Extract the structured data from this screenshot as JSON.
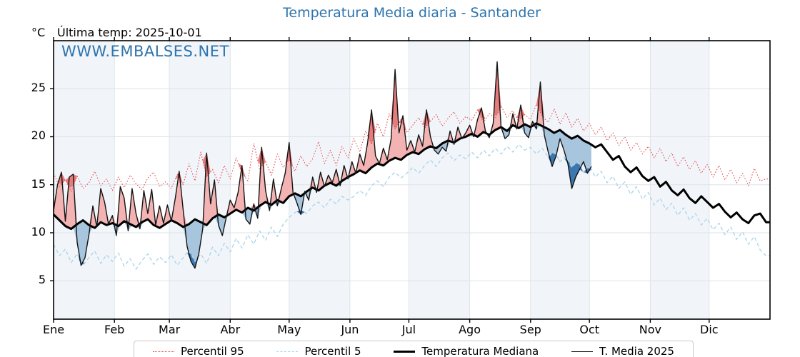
{
  "header": {
    "title": "Temperatura Media diaria - Santander",
    "unit_label": "°C",
    "last_temp_label": "Última temp: 2025-10-01",
    "watermark": "WWW.EMBALSES.NET"
  },
  "chart_data": {
    "type": "line",
    "title": "Temperatura Media diaria - Santander",
    "xlabel": "",
    "ylabel": "°C",
    "ylim": [
      1,
      30
    ],
    "yticks": [
      5,
      10,
      15,
      20,
      25
    ],
    "days_total": 365,
    "months": [
      "Ene",
      "Feb",
      "Mar",
      "Abr",
      "May",
      "Jun",
      "Jul",
      "Ago",
      "Sep",
      "Oct",
      "Nov",
      "Dic"
    ],
    "month_starts": [
      0,
      31,
      59,
      90,
      120,
      151,
      181,
      212,
      243,
      273,
      304,
      334
    ],
    "grid": true,
    "legend_position": "bottom",
    "band_alternate_start_month": "Ene",
    "colors": {
      "band": "#f1f5fa",
      "grid": "#dde3e8",
      "spine": "#000000",
      "title": "#2e74ad",
      "watermark": "#2e74ad"
    },
    "fills": {
      "above_median": "#f3b3b3",
      "above_p95": "#e57c7c",
      "below_median": "#a8c5de",
      "below_p5": "#3d77af"
    },
    "series": [
      {
        "name": "Percentil 95",
        "key": "p95",
        "style": "dotted",
        "color": "#e34c4c",
        "width": 1.1,
        "step": 3,
        "extend": true,
        "values": [
          16.2,
          14.8,
          15.5,
          14.3,
          15.9,
          14.6,
          15.2,
          16.4,
          14.9,
          15.6,
          14.4,
          15.8,
          14.7,
          16.0,
          15.1,
          14.5,
          15.7,
          16.3,
          14.8,
          15.3,
          14.6,
          16.1,
          15.0,
          17.2,
          15.4,
          18.4,
          15.8,
          16.6,
          15.2,
          17.0,
          15.6,
          17.8,
          16.2,
          15.4,
          19.3,
          16.6,
          17.4,
          16.0,
          18.2,
          16.8,
          17.6,
          16.4,
          18.0,
          16.9,
          17.7,
          19.5,
          17.2,
          18.6,
          17.0,
          19.0,
          17.8,
          19.8,
          18.4,
          20.6,
          19.2,
          21.4,
          20.0,
          22.4,
          20.8,
          21.8,
          20.4,
          21.2,
          22.0,
          20.9,
          21.6,
          22.3,
          21.1,
          21.9,
          22.6,
          21.4,
          22.1,
          21.7,
          22.8,
          21.5,
          22.4,
          21.9,
          23.2,
          22.0,
          22.7,
          21.6,
          22.3,
          21.8,
          23.4,
          22.1,
          21.5,
          22.9,
          21.3,
          22.5,
          21.0,
          21.9,
          20.6,
          21.4,
          20.2,
          21.0,
          19.6,
          20.4,
          19.1,
          20.0,
          18.6,
          19.4,
          18.2,
          19.0,
          17.8,
          18.8,
          17.4,
          18.3,
          16.9,
          17.9,
          16.6,
          17.5,
          16.2,
          17.1,
          15.8,
          17.0,
          15.5,
          16.6,
          15.2,
          16.2,
          14.9,
          16.7,
          15.4,
          15.6
        ]
      },
      {
        "name": "Percentil 5",
        "key": "p5",
        "style": "dashed",
        "color": "#aad4e8",
        "width": 1.3,
        "step": 3,
        "extend": true,
        "values": [
          8.8,
          7.6,
          8.3,
          6.9,
          7.8,
          6.6,
          7.4,
          8.1,
          6.8,
          7.7,
          7.0,
          7.9,
          6.5,
          7.3,
          6.2,
          7.1,
          7.8,
          6.7,
          7.5,
          6.9,
          7.7,
          6.6,
          7.4,
          8.2,
          7.0,
          7.8,
          6.8,
          8.5,
          7.6,
          8.9,
          8.0,
          9.4,
          8.4,
          9.8,
          8.8,
          10.2,
          9.2,
          10.6,
          9.6,
          10.9,
          11.6,
          12.1,
          12.4,
          12.0,
          12.8,
          13.2,
          12.6,
          13.5,
          13.0,
          13.8,
          13.4,
          13.8,
          14.4,
          13.9,
          14.9,
          15.4,
          14.8,
          15.8,
          16.3,
          15.7,
          16.2,
          16.8,
          16.2,
          17.0,
          17.6,
          16.9,
          17.8,
          18.3,
          17.5,
          18.1,
          17.7,
          18.4,
          17.8,
          18.6,
          18.0,
          18.8,
          18.2,
          19.0,
          18.4,
          19.2,
          18.6,
          18.9,
          18.2,
          18.8,
          17.9,
          18.5,
          17.4,
          18.0,
          16.8,
          17.5,
          16.3,
          17.0,
          15.8,
          16.4,
          15.2,
          15.9,
          14.6,
          15.3,
          14.0,
          14.8,
          13.5,
          14.2,
          12.9,
          13.6,
          12.4,
          13.1,
          11.8,
          12.6,
          11.3,
          12.0,
          10.8,
          11.5,
          10.3,
          11.0,
          9.8,
          10.6,
          9.3,
          10.1,
          8.8,
          9.6,
          8.2,
          7.6
        ]
      },
      {
        "name": "Temperatura Mediana",
        "key": "mediana",
        "style": "solid-thick",
        "color": "#000000",
        "width": 3,
        "step": 3,
        "extend": true,
        "values": [
          11.9,
          11.3,
          10.7,
          10.4,
          10.9,
          11.3,
          10.8,
          10.5,
          11.1,
          10.8,
          11.0,
          10.7,
          11.2,
          10.9,
          10.6,
          11.1,
          11.4,
          10.8,
          10.5,
          10.9,
          11.3,
          11.0,
          10.6,
          10.9,
          11.4,
          11.1,
          10.8,
          11.5,
          11.9,
          11.6,
          12.0,
          12.4,
          12.1,
          12.6,
          12.3,
          12.8,
          13.2,
          12.9,
          13.4,
          13.1,
          13.8,
          14.1,
          13.8,
          14.3,
          14.7,
          14.4,
          14.9,
          15.2,
          14.9,
          15.4,
          15.8,
          16.1,
          16.5,
          16.2,
          16.8,
          17.2,
          17.0,
          17.5,
          17.8,
          17.6,
          18.1,
          18.4,
          18.2,
          18.7,
          19.0,
          18.8,
          19.3,
          19.6,
          19.4,
          19.8,
          20.0,
          20.3,
          20.0,
          20.5,
          20.2,
          20.7,
          21.0,
          20.6,
          21.2,
          20.9,
          21.3,
          21.0,
          21.4,
          21.1,
          20.8,
          20.4,
          20.7,
          20.2,
          19.8,
          20.1,
          19.6,
          19.3,
          18.9,
          19.2,
          18.4,
          17.6,
          18.0,
          16.9,
          16.3,
          16.8,
          15.9,
          15.4,
          15.8,
          14.8,
          15.3,
          14.4,
          13.9,
          14.5,
          13.6,
          13.1,
          13.8,
          13.2,
          12.6,
          13.0,
          12.2,
          11.6,
          12.1,
          11.4,
          11.0,
          11.8,
          12.0,
          11.1
        ]
      },
      {
        "name": "T. Media 2025",
        "key": "t2025",
        "style": "solid-thin",
        "color": "#141414",
        "width": 1.4,
        "step": 2,
        "extend": false,
        "end_day": 274,
        "values": [
          12.3,
          15.0,
          16.3,
          11.2,
          15.8,
          16.1,
          9.0,
          6.6,
          7.4,
          9.8,
          12.8,
          10.6,
          14.6,
          13.2,
          10.9,
          11.8,
          9.7,
          14.8,
          13.6,
          10.2,
          14.6,
          12.0,
          10.4,
          14.4,
          12.0,
          14.5,
          10.8,
          12.8,
          11.0,
          12.9,
          11.2,
          13.6,
          16.4,
          12.4,
          8.6,
          7.0,
          6.3,
          7.8,
          10.4,
          18.3,
          13.0,
          15.5,
          10.8,
          9.7,
          11.6,
          13.4,
          12.6,
          14.2,
          17.0,
          11.4,
          10.9,
          13.0,
          11.5,
          18.9,
          14.4,
          12.3,
          15.6,
          12.8,
          14.6,
          16.2,
          19.4,
          14.2,
          13.1,
          11.9,
          14.3,
          13.4,
          15.8,
          14.2,
          16.3,
          14.8,
          16.0,
          15.2,
          16.6,
          14.9,
          17.0,
          15.6,
          17.4,
          16.2,
          18.2,
          17.0,
          19.4,
          22.8,
          18.0,
          17.2,
          18.8,
          17.6,
          19.8,
          27.0,
          20.4,
          22.2,
          18.6,
          19.6,
          18.4,
          20.2,
          19.0,
          22.8,
          20.0,
          18.6,
          18.2,
          18.9,
          18.5,
          20.6,
          19.2,
          21.0,
          19.8,
          20.4,
          21.2,
          20.0,
          21.8,
          23.0,
          20.6,
          19.9,
          21.4,
          27.8,
          21.0,
          19.8,
          20.2,
          22.4,
          20.8,
          23.3,
          20.4,
          19.9,
          21.6,
          20.8,
          25.7,
          20.2,
          18.4,
          16.9,
          18.0,
          19.8,
          18.6,
          17.2,
          14.6,
          15.8,
          16.6,
          17.4,
          16.2,
          16.9
        ]
      }
    ]
  }
}
